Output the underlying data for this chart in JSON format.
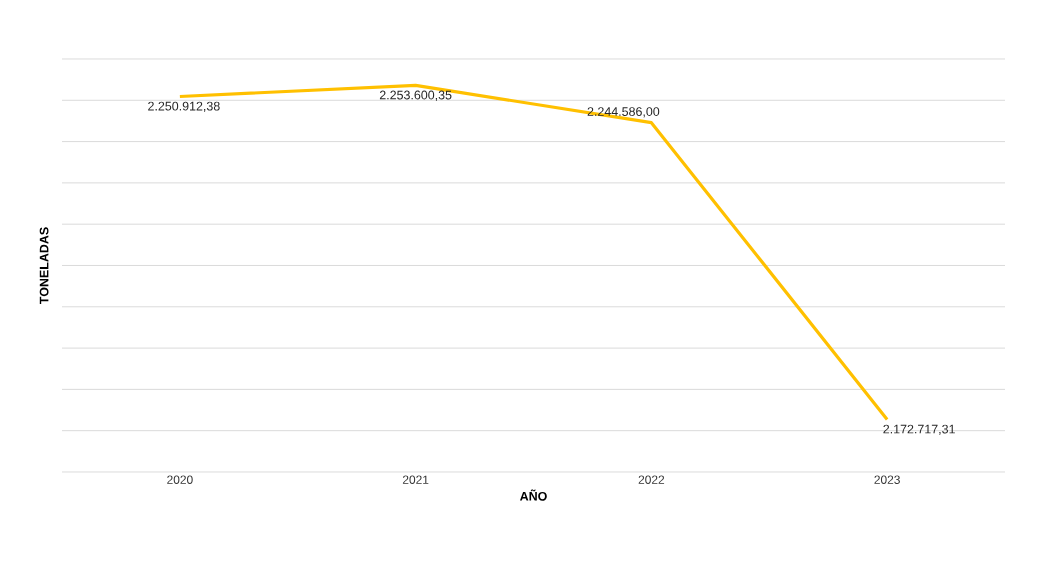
{
  "chart_data": {
    "type": "line",
    "xlabel": "AÑO",
    "ylabel": "TONELADAS",
    "categories": [
      "2020",
      "2021",
      "2022",
      "2023"
    ],
    "series": [
      {
        "color": "#ffc000",
        "values": [
          2250912.38,
          2253600.35,
          2244586.0,
          2172717.31
        ],
        "value_labels": [
          "2.250.912,38",
          "2.253.600,35",
          "2.244.586,00",
          "2.172.717,31"
        ]
      }
    ],
    "ylim": [
      2160000,
      2260000
    ],
    "yticks": [
      {
        "value": 2160000,
        "label": null
      },
      {
        "value": 2170000,
        "label": null
      },
      {
        "value": 2180000,
        "label": null
      },
      {
        "value": 2190000,
        "label": null
      },
      {
        "value": 2200000,
        "label": null
      },
      {
        "value": 2210000,
        "label": null
      },
      {
        "value": 2220000,
        "label": null
      },
      {
        "value": 2230000,
        "label": null
      },
      {
        "value": 2240000,
        "label": null
      },
      {
        "value": 2250000,
        "label": null
      },
      {
        "value": 2260000,
        "label": null
      }
    ],
    "grid": "y",
    "tick_labels": "x"
  }
}
